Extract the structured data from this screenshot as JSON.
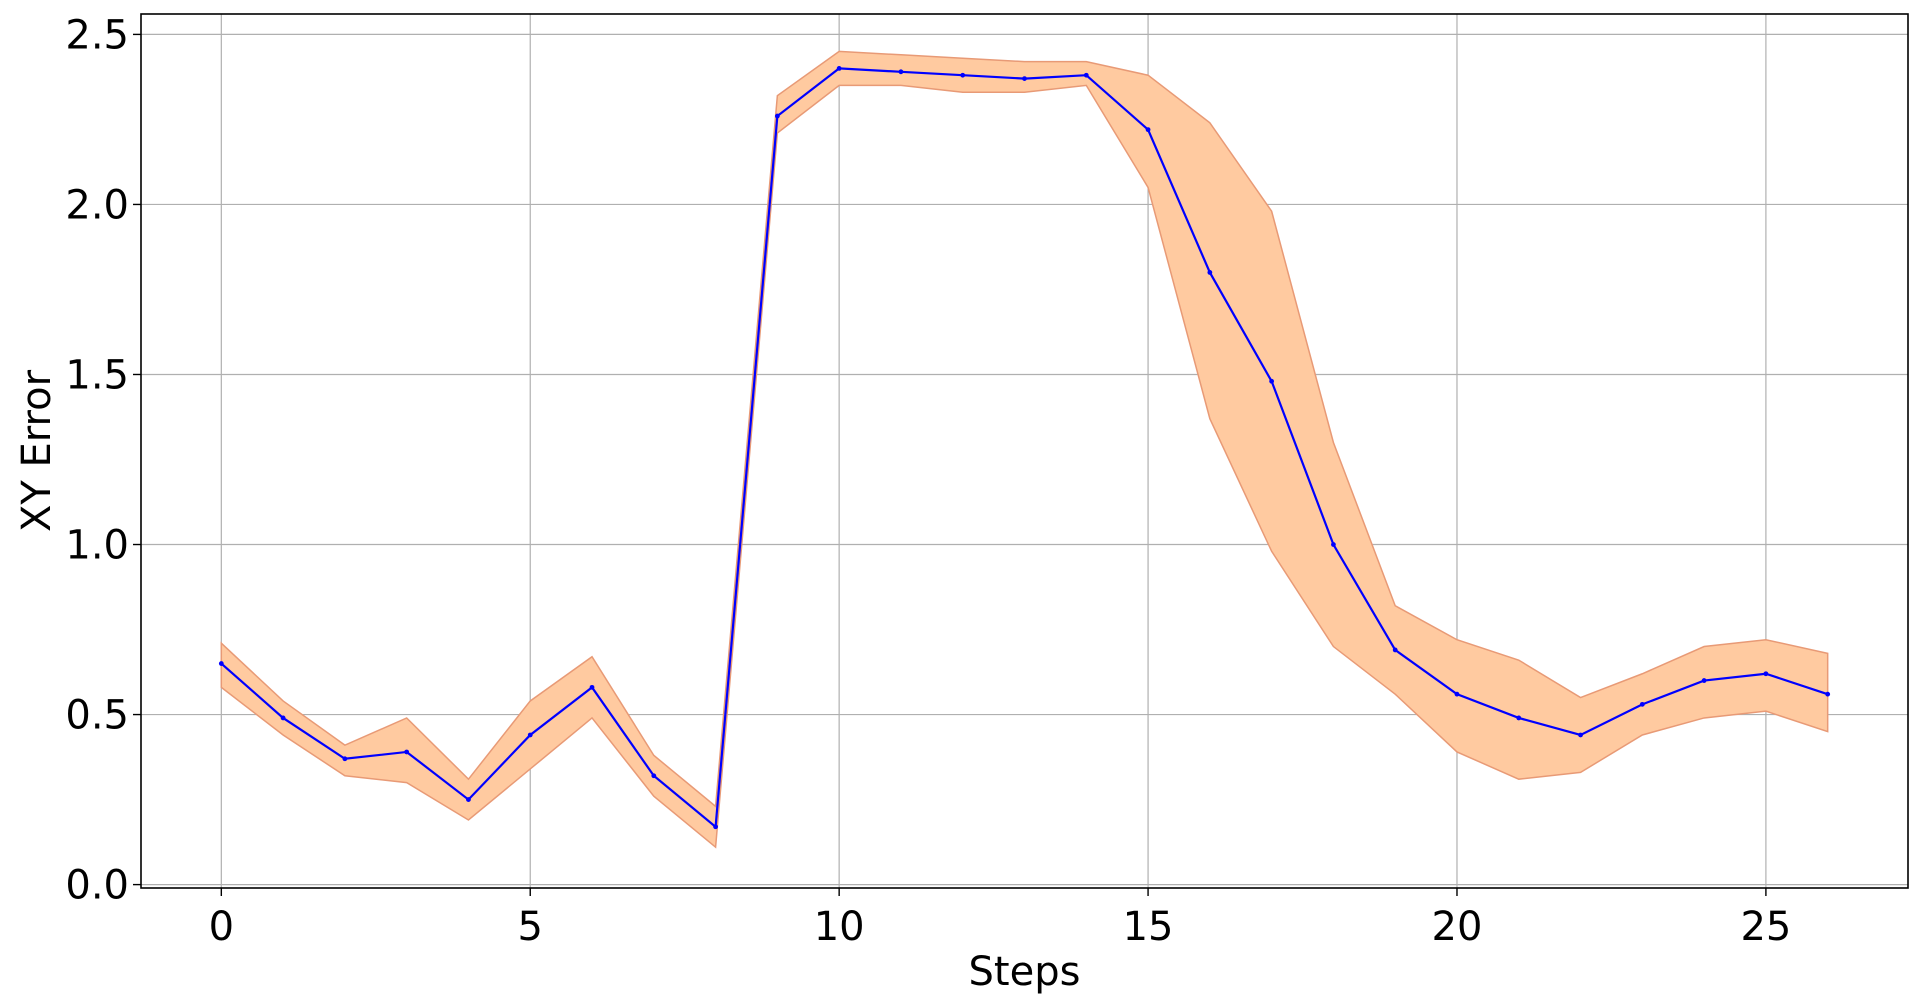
{
  "chart_data": {
    "type": "line",
    "title": "",
    "xlabel": "Steps",
    "ylabel": "XY Error",
    "xlim": [
      -1.3,
      27.3
    ],
    "ylim": [
      -0.01,
      2.56
    ],
    "grid": true,
    "x_ticks": [
      0,
      5,
      10,
      15,
      20,
      25
    ],
    "y_ticks": [
      0.0,
      0.5,
      1.0,
      1.5,
      2.0,
      2.5
    ],
    "x_tick_labels": [
      "0",
      "5",
      "10",
      "15",
      "20",
      "25"
    ],
    "y_tick_labels": [
      "0.0",
      "0.5",
      "1.0",
      "1.5",
      "2.0",
      "2.5"
    ],
    "x": [
      0,
      1,
      2,
      3,
      4,
      5,
      6,
      7,
      8,
      9,
      10,
      11,
      12,
      13,
      14,
      15,
      16,
      17,
      18,
      19,
      20,
      21,
      22,
      23,
      24,
      25,
      26
    ],
    "series": [
      {
        "values": [
          0.65,
          0.49,
          0.37,
          0.39,
          0.25,
          0.44,
          0.58,
          0.32,
          0.17,
          2.26,
          2.4,
          2.39,
          2.38,
          2.37,
          2.38,
          2.22,
          1.8,
          1.48,
          1.0,
          0.69,
          0.56,
          0.49,
          0.44,
          0.53,
          0.6,
          0.62,
          0.56
        ],
        "band_lower": [
          0.58,
          0.44,
          0.32,
          0.3,
          0.19,
          0.34,
          0.49,
          0.26,
          0.11,
          2.21,
          2.35,
          2.35,
          2.33,
          2.33,
          2.35,
          2.05,
          1.37,
          0.98,
          0.7,
          0.56,
          0.39,
          0.31,
          0.33,
          0.44,
          0.49,
          0.51,
          0.45
        ],
        "band_upper": [
          0.71,
          0.54,
          0.41,
          0.49,
          0.31,
          0.54,
          0.67,
          0.38,
          0.23,
          2.32,
          2.45,
          2.44,
          2.43,
          2.42,
          2.42,
          2.38,
          2.24,
          1.98,
          1.3,
          0.82,
          0.72,
          0.66,
          0.55,
          0.62,
          0.7,
          0.72,
          0.68
        ]
      }
    ],
    "colors": {
      "line": "#0000ff",
      "band_fill": "#ffcaa0",
      "band_edge": "#e89a76",
      "grid": "#b0b0b0",
      "axes": "#000000"
    }
  }
}
